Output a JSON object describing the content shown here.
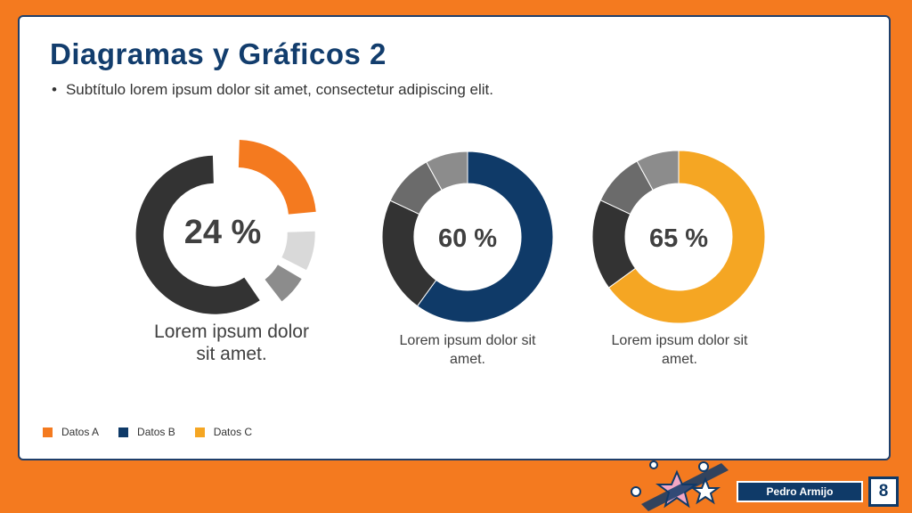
{
  "title": "Diagramas y Gráficos 2",
  "subtitle": {
    "bullet": "•",
    "text": "Subtítulo lorem ipsum dolor sit amet, consectetur adipiscing elit."
  },
  "legend": [
    {
      "label": "Datos A",
      "color": "#f47a1f"
    },
    {
      "label": "Datos B",
      "color": "#0f3a68"
    },
    {
      "label": "Datos C",
      "color": "#f5a623"
    }
  ],
  "chart_data": [
    {
      "type": "pie",
      "variant": "exploded-donut",
      "center_label": "24 %",
      "caption": "Lorem ipsum dolor sit amet.",
      "slices": [
        {
          "value": 24,
          "color": "#f47a1f"
        },
        {
          "value": 9,
          "color": "#d9d9d9"
        },
        {
          "value": 7,
          "color": "#8c8c8c"
        },
        {
          "value": 60,
          "color": "#333333"
        }
      ]
    },
    {
      "type": "pie",
      "variant": "donut",
      "center_label": "60 %",
      "caption": "Lorem ipsum dolor sit amet.",
      "slices": [
        {
          "value": 60,
          "color": "#0f3a68"
        },
        {
          "value": 22,
          "color": "#333333"
        },
        {
          "value": 10,
          "color": "#6b6b6b"
        },
        {
          "value": 8,
          "color": "#8c8c8c"
        }
      ]
    },
    {
      "type": "pie",
      "variant": "donut",
      "center_label": "65 %",
      "caption": "Lorem ipsum dolor sit amet.",
      "slices": [
        {
          "value": 65,
          "color": "#f5a623"
        },
        {
          "value": 17,
          "color": "#333333"
        },
        {
          "value": 10,
          "color": "#6b6b6b"
        },
        {
          "value": 8,
          "color": "#8c8c8c"
        }
      ]
    }
  ],
  "footer": {
    "author": "Pedro Armijo",
    "page": "8"
  }
}
